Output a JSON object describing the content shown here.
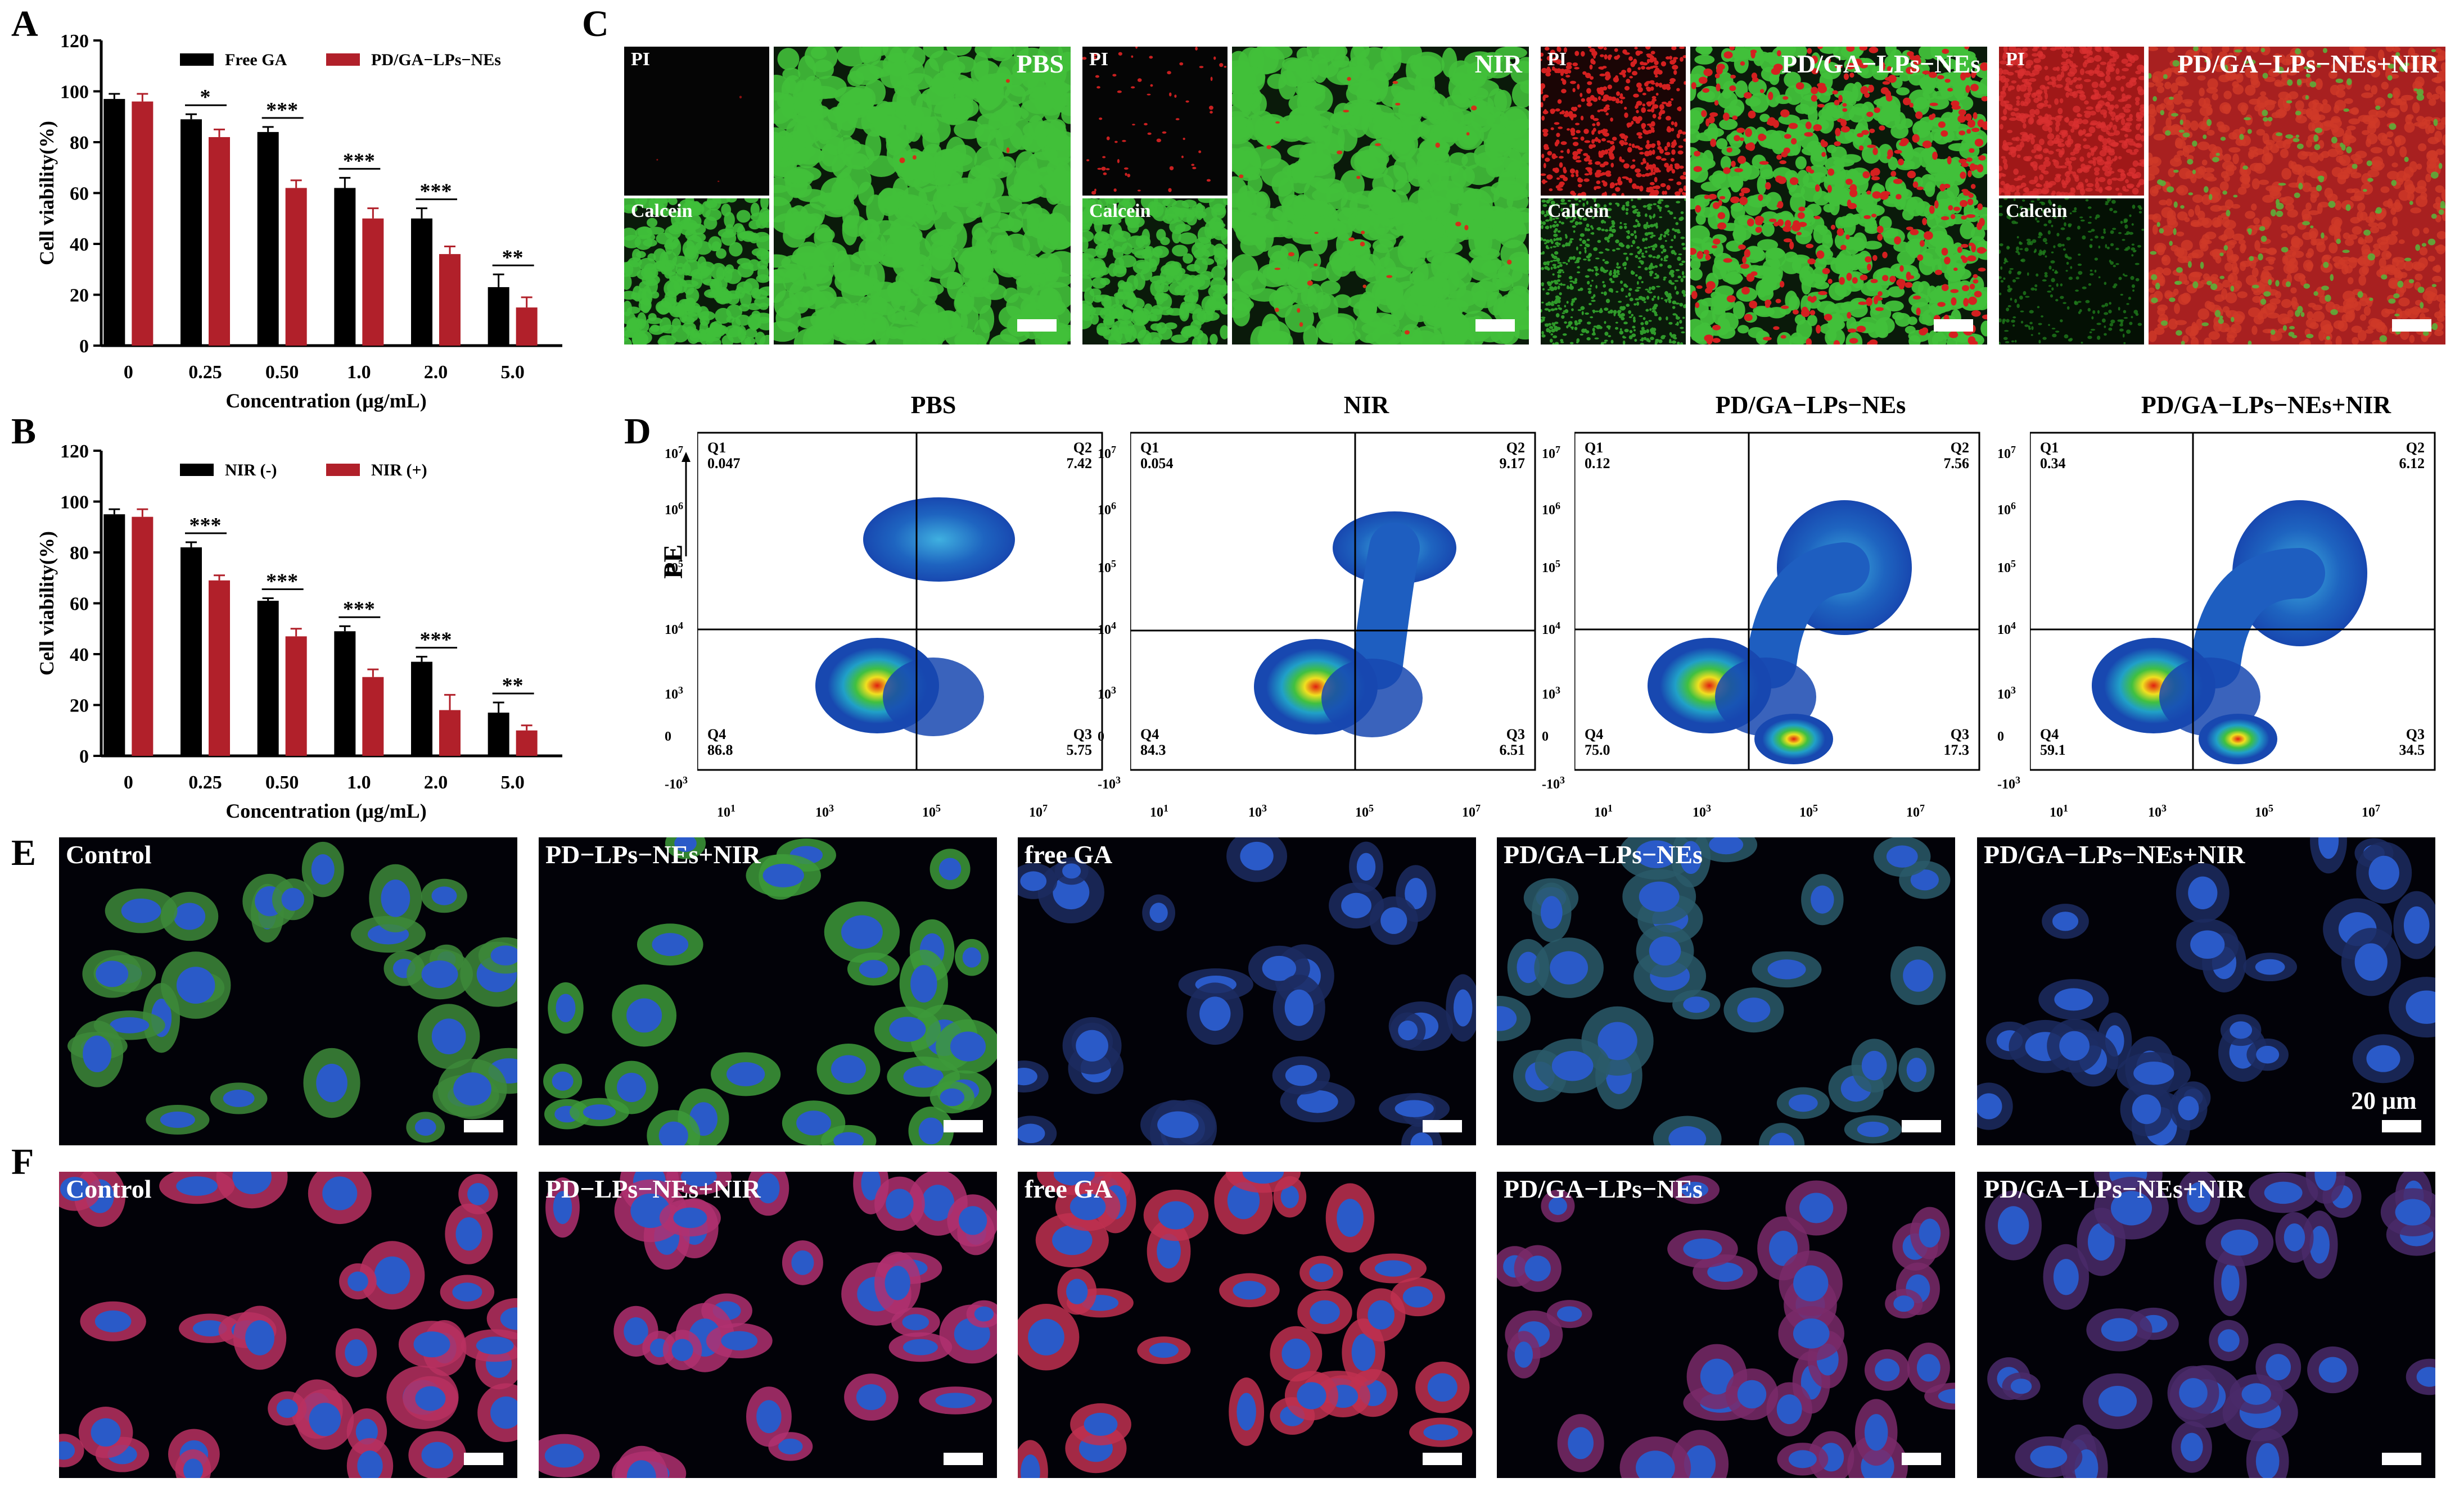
{
  "panel_letters": [
    "A",
    "B",
    "C",
    "D",
    "E",
    "F"
  ],
  "chart_data": [
    {
      "type": "bar",
      "panel": "A",
      "categories": [
        "0",
        "0.25",
        "0.50",
        "1.0",
        "2.0",
        "5.0"
      ],
      "xlabel": "Concentration (μg/mL)",
      "ylabel": "Cell viability(%)",
      "ylim": [
        0,
        120
      ],
      "yticks": [
        "0",
        "20",
        "40",
        "60",
        "80",
        "100",
        "120"
      ],
      "legend_position": "top",
      "series": [
        {
          "name": "Free GA",
          "color": "#000000",
          "values": [
            97,
            89,
            84,
            62,
            50,
            23
          ],
          "errors": [
            2,
            2,
            2,
            4,
            4,
            5
          ]
        },
        {
          "name": "PD/GA−LPs−NEs",
          "color": "#b1202a",
          "values": [
            96,
            82,
            62,
            50,
            36,
            15
          ],
          "errors": [
            3,
            3,
            3,
            4,
            3,
            4
          ]
        }
      ],
      "significance": [
        "",
        "*",
        "***",
        "***",
        "***",
        "**"
      ]
    },
    {
      "type": "bar",
      "panel": "B",
      "categories": [
        "0",
        "0.25",
        "0.50",
        "1.0",
        "2.0",
        "5.0"
      ],
      "xlabel": "Concentration (μg/mL)",
      "ylabel": "Cell viability(%)",
      "ylim": [
        0,
        120
      ],
      "yticks": [
        "0",
        "20",
        "40",
        "60",
        "80",
        "100",
        "120"
      ],
      "legend_position": "top",
      "series": [
        {
          "name": "NIR (-)",
          "color": "#000000",
          "values": [
            95,
            82,
            61,
            49,
            37,
            17
          ],
          "errors": [
            2,
            2,
            1,
            2,
            2,
            4
          ]
        },
        {
          "name": "NIR (+)",
          "color": "#b1202a",
          "values": [
            94,
            69,
            47,
            31,
            18,
            10
          ],
          "errors": [
            3,
            2,
            3,
            3,
            6,
            2
          ]
        }
      ],
      "significance": [
        "",
        "***",
        "***",
        "***",
        "***",
        "**"
      ]
    }
  ],
  "panel_c": {
    "groups": [
      {
        "title": "PBS",
        "pi_label": "PI",
        "calcein_label": "Calcein"
      },
      {
        "title": "NIR",
        "pi_label": "PI",
        "calcein_label": "Calcein"
      },
      {
        "title": "PD/GA−LPs−NEs",
        "pi_label": "PI",
        "calcein_label": "Calcein"
      },
      {
        "title": "PD/GA−LPs−NEs+NIR",
        "pi_label": "PI",
        "calcein_label": "Calcein"
      }
    ]
  },
  "panel_d": {
    "ylabel": "PE",
    "yticks": [
      "10",
      "10",
      "10",
      "10",
      "0",
      "-10"
    ],
    "yexp": [
      "7",
      "6",
      "5",
      "4",
      "",
      "3"
    ],
    "y3": "10",
    "xticks": [
      "10",
      "10",
      "10",
      "10"
    ],
    "xexp": [
      "1",
      "3",
      "5",
      "7"
    ],
    "plots": [
      {
        "title": "PBS",
        "q1": "Q1",
        "q1v": "0.047",
        "q2": "Q2",
        "q2v": "7.42",
        "q3": "Q3",
        "q3v": "5.75",
        "q4": "Q4",
        "q4v": "86.8"
      },
      {
        "title": "NIR",
        "q1": "Q1",
        "q1v": "0.054",
        "q2": "Q2",
        "q2v": "9.17",
        "q3": "Q3",
        "q3v": "6.51",
        "q4": "Q4",
        "q4v": "84.3"
      },
      {
        "title": "PD/GA−LPs−NEs",
        "q1": "Q1",
        "q1v": "0.12",
        "q2": "Q2",
        "q2v": "7.56",
        "q3": "Q3",
        "q3v": "17.3",
        "q4": "Q4",
        "q4v": "75.0"
      },
      {
        "title": "PD/GA−LPs−NEs+NIR",
        "q1": "Q1",
        "q1v": "0.34",
        "q2": "Q2",
        "q2v": "6.12",
        "q3": "Q3",
        "q3v": "34.5",
        "q4": "Q4",
        "q4v": "59.1"
      }
    ]
  },
  "panel_e": {
    "labels": [
      "Control",
      "PD−LPs−NEs+NIR",
      "free GA",
      "PD/GA−LPs−NEs",
      "PD/GA−LPs−NEs+NIR"
    ],
    "scale_label": "20 μm"
  },
  "panel_f": {
    "labels": [
      "Control",
      "PD−LPs−NEs+NIR",
      "free GA",
      "PD/GA−LPs−NEs",
      "PD/GA−LPs−NEs+NIR"
    ]
  },
  "colors": {
    "green_live": "#36b02c",
    "red_dead": "#c81e1e",
    "bar_black": "#000000",
    "bar_red": "#b1202a",
    "nucleus_blue": "#2850c8"
  }
}
